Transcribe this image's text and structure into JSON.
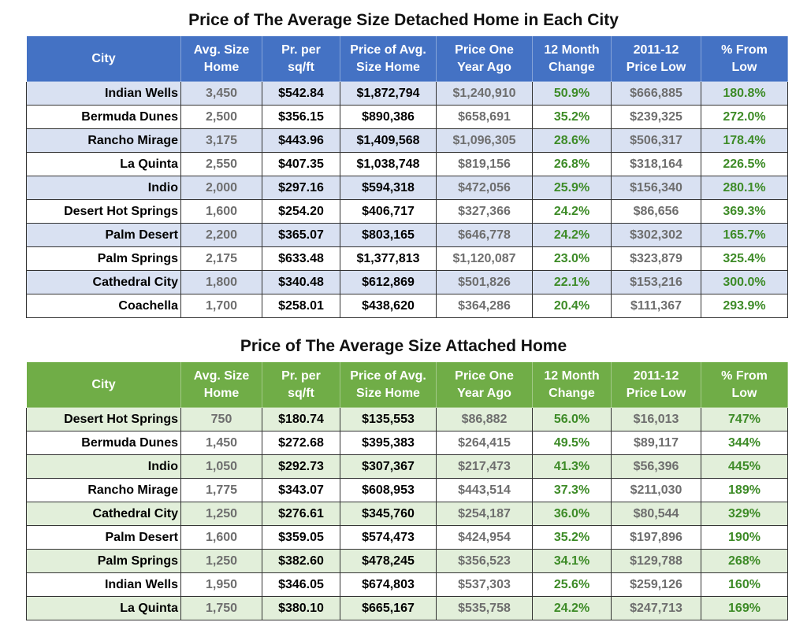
{
  "detached": {
    "title": "Price of The Average Size Detached Home in Each City",
    "headers": [
      [
        "City",
        ""
      ],
      [
        "Avg. Size",
        "Home"
      ],
      [
        "Pr. per",
        "sq/ft"
      ],
      [
        "Price of Avg.",
        "Size Home"
      ],
      [
        "Price One",
        "Year Ago"
      ],
      [
        "12 Month",
        "Change"
      ],
      [
        "2011-12",
        "Price Low"
      ],
      [
        "% From",
        "Low"
      ]
    ],
    "rows": [
      [
        "Indian Wells",
        "3,450",
        "$542.84",
        "$1,872,794",
        "$1,240,910",
        "50.9%",
        "$666,885",
        "180.8%"
      ],
      [
        "Bermuda Dunes",
        "2,500",
        "$356.15",
        "$890,386",
        "$658,691",
        "35.2%",
        "$239,325",
        "272.0%"
      ],
      [
        "Rancho Mirage",
        "3,175",
        "$443.96",
        "$1,409,568",
        "$1,096,305",
        "28.6%",
        "$506,317",
        "178.4%"
      ],
      [
        "La Quinta",
        "2,550",
        "$407.35",
        "$1,038,748",
        "$819,156",
        "26.8%",
        "$318,164",
        "226.5%"
      ],
      [
        "Indio",
        "2,000",
        "$297.16",
        "$594,318",
        "$472,056",
        "25.9%",
        "$156,340",
        "280.1%"
      ],
      [
        "Desert Hot Springs",
        "1,600",
        "$254.20",
        "$406,717",
        "$327,366",
        "24.2%",
        "$86,656",
        "369.3%"
      ],
      [
        "Palm Desert",
        "2,200",
        "$365.07",
        "$803,165",
        "$646,778",
        "24.2%",
        "$302,302",
        "165.7%"
      ],
      [
        "Palm Springs",
        "2,175",
        "$633.48",
        "$1,377,813",
        "$1,120,087",
        "23.0%",
        "$323,879",
        "325.4%"
      ],
      [
        "Cathedral City",
        "1,800",
        "$340.48",
        "$612,869",
        "$501,826",
        "22.1%",
        "$153,216",
        "300.0%"
      ],
      [
        "Coachella",
        "1,700",
        "$258.01",
        "$438,620",
        "$364,286",
        "20.4%",
        "$111,367",
        "293.9%"
      ]
    ]
  },
  "attached": {
    "title": "Price of The Average Size Attached Home",
    "headers": [
      [
        "City",
        ""
      ],
      [
        "Avg. Size",
        "Home"
      ],
      [
        "Pr. per",
        "sq/ft"
      ],
      [
        "Price of Avg.",
        "Size Home"
      ],
      [
        "Price One",
        "Year Ago"
      ],
      [
        "12 Month",
        "Change"
      ],
      [
        "2011-12",
        "Price Low"
      ],
      [
        "% From",
        "Low"
      ]
    ],
    "rows": [
      [
        "Desert Hot Springs",
        "750",
        "$180.74",
        "$135,553",
        "$86,882",
        "56.0%",
        "$16,013",
        "747%"
      ],
      [
        "Bermuda Dunes",
        "1,450",
        "$272.68",
        "$395,383",
        "$264,415",
        "49.5%",
        "$89,117",
        "344%"
      ],
      [
        "Indio",
        "1,050",
        "$292.73",
        "$307,367",
        "$217,473",
        "41.3%",
        "$56,396",
        "445%"
      ],
      [
        "Rancho Mirage",
        "1,775",
        "$343.07",
        "$608,953",
        "$443,514",
        "37.3%",
        "$211,030",
        "189%"
      ],
      [
        "Cathedral City",
        "1,250",
        "$276.61",
        "$345,760",
        "$254,187",
        "36.0%",
        "$80,544",
        "329%"
      ],
      [
        "Palm Desert",
        "1,600",
        "$359.05",
        "$574,473",
        "$424,954",
        "35.2%",
        "$197,896",
        "190%"
      ],
      [
        "Palm Springs",
        "1,250",
        "$382.60",
        "$478,245",
        "$356,523",
        "34.1%",
        "$129,788",
        "268%"
      ],
      [
        "Indian Wells",
        "1,950",
        "$346.05",
        "$674,803",
        "$537,303",
        "25.6%",
        "$259,126",
        "160%"
      ],
      [
        "La Quinta",
        "1,750",
        "$380.10",
        "$665,167",
        "$535,758",
        "24.2%",
        "$247,713",
        "169%"
      ]
    ]
  }
}
